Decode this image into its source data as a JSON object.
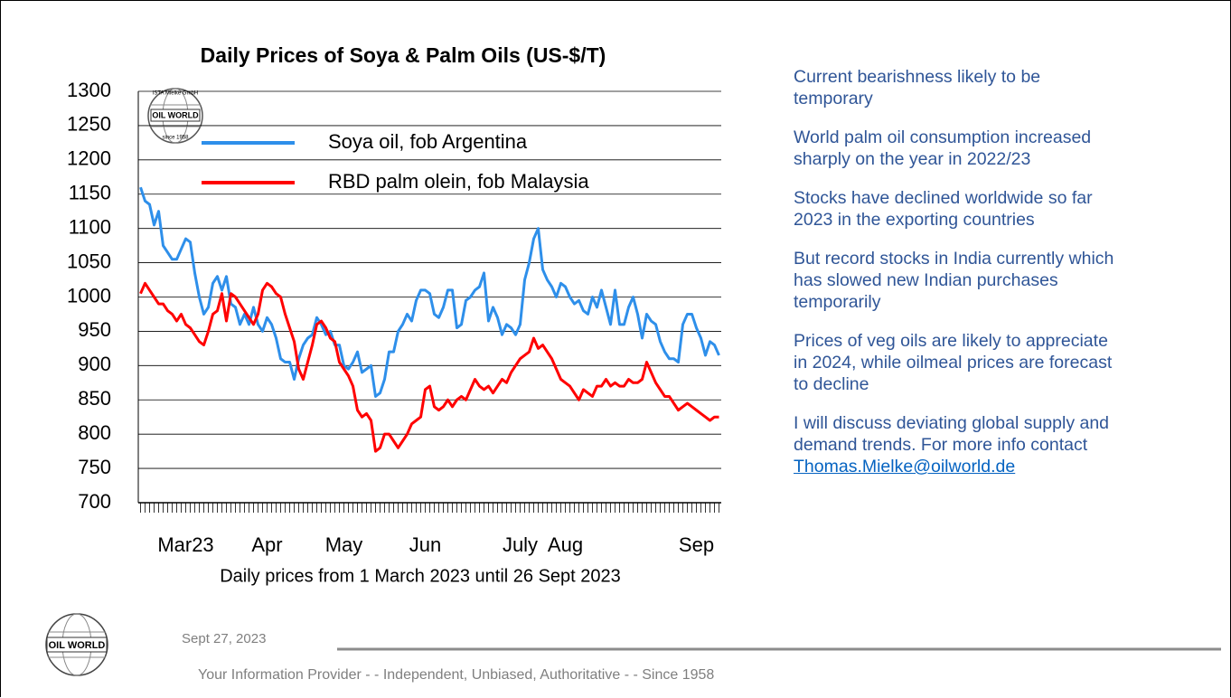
{
  "chart_data": {
    "type": "line",
    "title": "Daily Prices of Soya & Palm Oils (US-$/T)",
    "x_label": "Daily prices from 1 March 2023 until 26 Sept 2023",
    "categories": [
      null,
      null,
      null,
      null,
      null,
      null,
      null,
      null,
      null,
      null,
      "Mar23",
      null,
      null,
      null,
      null,
      null,
      null,
      null,
      null,
      null,
      null,
      null,
      null,
      null,
      null,
      null,
      null,
      null,
      "Apr",
      null,
      null,
      null,
      null,
      null,
      null,
      null,
      null,
      null,
      null,
      null,
      null,
      null,
      null,
      null,
      null,
      "May",
      null,
      null,
      null,
      null,
      null,
      null,
      null,
      null,
      null,
      null,
      null,
      null,
      null,
      null,
      null,
      null,
      null,
      "Jun",
      null,
      null,
      null,
      null,
      null,
      null,
      null,
      null,
      null,
      null,
      null,
      null,
      null,
      null,
      null,
      null,
      null,
      null,
      null,
      null,
      "July",
      null,
      null,
      null,
      null,
      null,
      null,
      null,
      null,
      null,
      "Aug",
      null,
      null,
      null,
      null,
      null,
      null,
      null,
      null,
      null,
      null,
      null,
      null,
      null,
      null,
      null,
      null,
      null,
      null,
      null,
      null,
      null,
      null,
      null,
      null,
      null,
      null,
      null,
      null,
      "Sep",
      null,
      null,
      null,
      null,
      null
    ],
    "series": [
      {
        "name": "Soya oil, fob Argentina",
        "color": "#2e8fea",
        "values": [
          1160,
          1140,
          1135,
          1105,
          1125,
          1075,
          1065,
          1055,
          1055,
          1070,
          1085,
          1080,
          1035,
          1000,
          975,
          985,
          1020,
          1030,
          1010,
          1030,
          990,
          985,
          960,
          975,
          960,
          985,
          960,
          950,
          970,
          960,
          940,
          910,
          905,
          905,
          880,
          910,
          930,
          940,
          945,
          970,
          960,
          945,
          950,
          930,
          930,
          900,
          895,
          905,
          920,
          890,
          895,
          900,
          855,
          860,
          880,
          920,
          920,
          950,
          960,
          975,
          965,
          995,
          1010,
          1010,
          1005,
          975,
          970,
          985,
          1010,
          1010,
          955,
          960,
          995,
          1000,
          1010,
          1015,
          1035,
          965,
          985,
          970,
          945,
          960,
          955,
          945,
          960,
          1025,
          1050,
          1085,
          1100,
          1040,
          1025,
          1015,
          1000,
          1020,
          1015,
          1000,
          990,
          995,
          980,
          975,
          1000,
          985,
          1010,
          985,
          960,
          1010,
          960,
          960,
          985,
          1000,
          975,
          940,
          975,
          965,
          960,
          935,
          920,
          910,
          910,
          905,
          960,
          975,
          975,
          955,
          940,
          915,
          935,
          930,
          915
        ]
      },
      {
        "name": "RBD palm olein, fob Malaysia",
        "color": "#ff0000",
        "values": [
          1005,
          1020,
          1010,
          1000,
          990,
          990,
          980,
          975,
          965,
          975,
          960,
          955,
          945,
          935,
          930,
          950,
          975,
          980,
          1005,
          965,
          1005,
          1000,
          990,
          980,
          970,
          960,
          975,
          1010,
          1020,
          1015,
          1005,
          1000,
          975,
          955,
          935,
          895,
          880,
          905,
          930,
          960,
          965,
          955,
          940,
          935,
          905,
          895,
          885,
          870,
          835,
          825,
          830,
          820,
          775,
          780,
          800,
          800,
          790,
          780,
          790,
          800,
          815,
          820,
          825,
          865,
          870,
          840,
          835,
          840,
          850,
          840,
          850,
          855,
          850,
          865,
          880,
          870,
          865,
          870,
          860,
          870,
          880,
          875,
          890,
          900,
          910,
          915,
          920,
          940,
          925,
          930,
          920,
          910,
          895,
          880,
          875,
          870,
          860,
          850,
          865,
          860,
          855,
          870,
          870,
          880,
          870,
          875,
          870,
          870,
          880,
          875,
          875,
          880,
          905,
          890,
          875,
          865,
          855,
          855,
          845,
          835,
          840,
          845,
          840,
          835,
          830,
          825,
          820,
          825,
          825
        ]
      }
    ],
    "ylim": [
      700,
      1300
    ],
    "yticks": [
      700,
      750,
      800,
      850,
      900,
      950,
      1000,
      1050,
      1100,
      1150,
      1200,
      1250,
      1300
    ],
    "grid": true,
    "legend": "top",
    "logo": {
      "top": "ISTA Mielke GmbH",
      "name": "OIL WORLD",
      "bottom": "since 1958"
    }
  },
  "notes": [
    [
      "Current bearishness likely to be",
      "temporary"
    ],
    [
      "World palm oil consumption increased",
      "sharply on the year in 2022/23"
    ],
    [
      "Stocks have declined worldwide so far",
      "2023 in the exporting countries"
    ],
    [
      "But record stocks in India currently which",
      "has slowed new Indian purchases",
      "temporarily"
    ],
    [
      "Prices of veg oils are likely to appreciate",
      "in 2024, while oilmeal prices are forecast",
      "to decline"
    ],
    [
      "I will discuss deviating global supply and",
      "demand trends. For more info contact"
    ]
  ],
  "contact_email": "Thomas.Mielke@oilworld.de",
  "footer": {
    "logo": "OIL WORLD",
    "date": "Sept 27, 2023",
    "tagline": "Your Information Provider - - Independent, Unbiased, Authoritative - - Since 1958"
  }
}
